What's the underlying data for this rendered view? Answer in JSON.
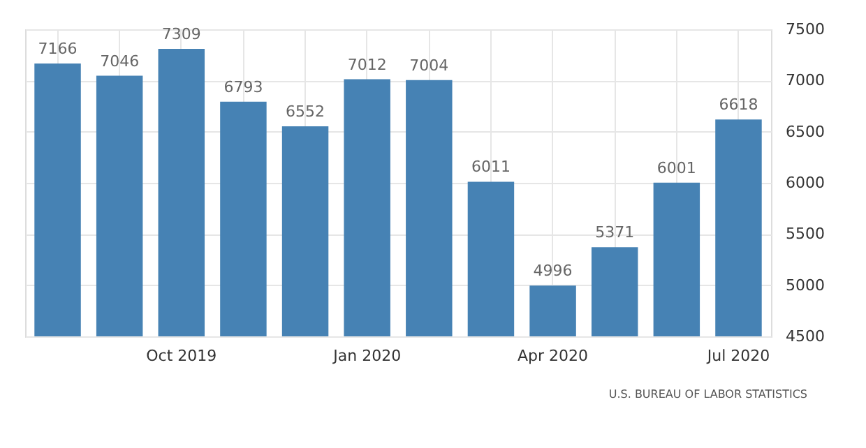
{
  "chart_data": {
    "type": "bar",
    "categories": [
      null,
      null,
      "Oct 2019",
      null,
      null,
      "Jan 2020",
      null,
      null,
      "Apr 2020",
      null,
      null,
      "Jul 2020"
    ],
    "values": [
      7166,
      7046,
      7309,
      6793,
      6552,
      7012,
      7004,
      6011,
      4996,
      5371,
      6001,
      6618
    ],
    "color": "#4682b4",
    "ylim": [
      4500,
      7500
    ],
    "yticks": [
      4500,
      5000,
      5500,
      6000,
      6500,
      7000,
      7500
    ],
    "grid": true,
    "data_labels": true,
    "annotations": [
      "U.S. BUREAU OF LABOR STATISTICS"
    ]
  }
}
